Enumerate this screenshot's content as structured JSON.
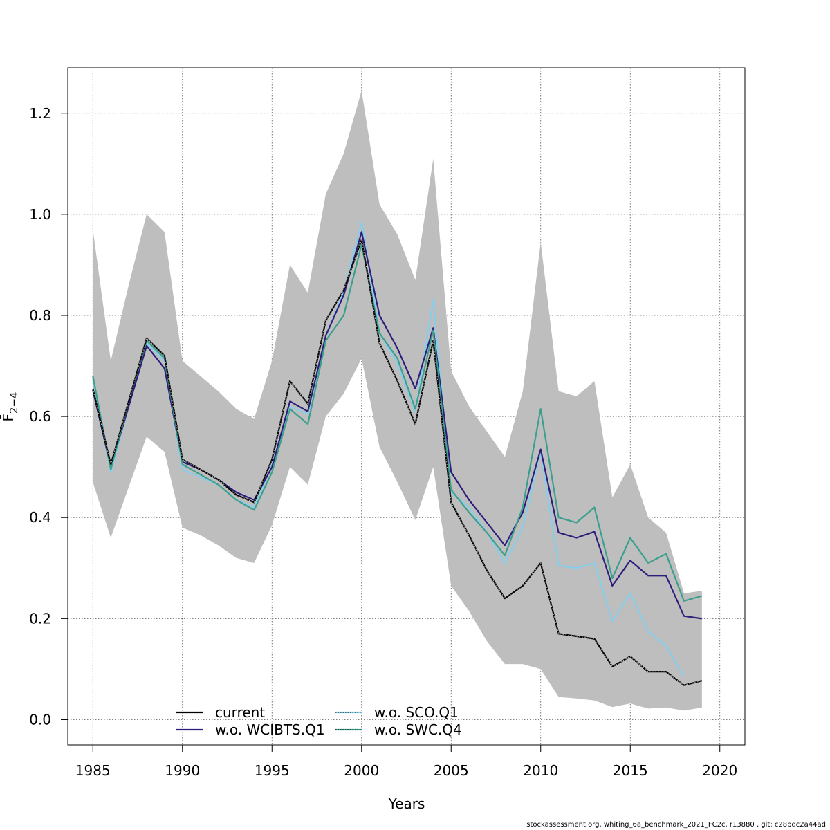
{
  "chart_data": {
    "type": "line",
    "xlabel": "Years",
    "ylabel": "F̄",
    "ylabel_sub": "2−4",
    "xlim": [
      1983.6,
      2021.4
    ],
    "ylim": [
      -0.05,
      1.29
    ],
    "x_ticks": [
      1985,
      1990,
      1995,
      2000,
      2005,
      2010,
      2015,
      2020
    ],
    "y_ticks": [
      0.0,
      0.2,
      0.4,
      0.6,
      0.8,
      1.0,
      1.2
    ],
    "x_tick_labels": [
      "1985",
      "1990",
      "1995",
      "2000",
      "2005",
      "2010",
      "2015",
      "2020"
    ],
    "y_tick_labels": [
      "0.0",
      "0.2",
      "0.4",
      "0.6",
      "0.8",
      "1.0",
      "1.2"
    ],
    "grid": true,
    "legend_position": "bottom-left",
    "x": [
      1985,
      1986,
      1987,
      1988,
      1989,
      1990,
      1991,
      1992,
      1993,
      1994,
      1995,
      1996,
      1997,
      1998,
      1999,
      2000,
      2001,
      2002,
      2003,
      2004,
      2005,
      2006,
      2007,
      2008,
      2009,
      2010,
      2011,
      2012,
      2013,
      2014,
      2015,
      2016,
      2017,
      2018,
      2019
    ],
    "confidence_band": {
      "color": "#bebebe",
      "lower": [
        0.47,
        0.36,
        0.46,
        0.56,
        0.53,
        0.38,
        0.365,
        0.345,
        0.32,
        0.31,
        0.385,
        0.5,
        0.465,
        0.6,
        0.645,
        0.715,
        0.54,
        0.47,
        0.395,
        0.5,
        0.265,
        0.215,
        0.155,
        0.11,
        0.11,
        0.1,
        0.045,
        0.042,
        0.038,
        0.025,
        0.032,
        0.022,
        0.024,
        0.018,
        0.024
      ],
      "upper": [
        0.97,
        0.71,
        0.86,
        1.0,
        0.965,
        0.71,
        0.68,
        0.65,
        0.615,
        0.595,
        0.71,
        0.9,
        0.845,
        1.04,
        1.12,
        1.245,
        1.02,
        0.96,
        0.87,
        1.11,
        0.69,
        0.62,
        0.57,
        0.52,
        0.65,
        0.945,
        0.65,
        0.64,
        0.67,
        0.44,
        0.505,
        0.4,
        0.37,
        0.25,
        0.255
      ]
    },
    "series": [
      {
        "name": "current",
        "color": "#000000",
        "values": [
          0.655,
          0.505,
          0.63,
          0.755,
          0.72,
          0.515,
          0.495,
          0.475,
          0.445,
          0.43,
          0.515,
          0.67,
          0.625,
          0.79,
          0.85,
          0.95,
          0.745,
          0.67,
          0.585,
          0.75,
          0.43,
          0.365,
          0.295,
          0.24,
          0.265,
          0.31,
          0.17,
          0.165,
          0.16,
          0.105,
          0.125,
          0.095,
          0.095,
          0.068,
          0.077
        ]
      },
      {
        "name": "w.o. WCIBTS.Q1",
        "color": "#2e1e7c",
        "values": [
          0.652,
          0.5,
          0.62,
          0.74,
          0.695,
          0.51,
          0.495,
          0.475,
          0.45,
          0.435,
          0.5,
          0.63,
          0.61,
          0.76,
          0.84,
          0.965,
          0.8,
          0.735,
          0.655,
          0.775,
          0.49,
          0.435,
          0.39,
          0.345,
          0.41,
          0.535,
          0.37,
          0.36,
          0.372,
          0.265,
          0.315,
          0.285,
          0.285,
          0.205,
          0.2
        ]
      },
      {
        "name": "w.o. SCO.Q1",
        "color": "#87ceeb",
        "values": [
          0.675,
          0.49,
          0.62,
          0.745,
          0.71,
          0.495,
          0.48,
          0.465,
          0.435,
          0.42,
          0.505,
          0.62,
          0.605,
          0.76,
          0.845,
          0.985,
          0.765,
          0.705,
          0.61,
          0.83,
          0.45,
          0.42,
          0.37,
          0.31,
          0.38,
          0.53,
          0.305,
          0.3,
          0.31,
          0.195,
          0.25,
          0.175,
          0.145,
          0.085,
          null
        ]
      },
      {
        "name": "w.o. SWC.Q4",
        "color": "#3a9f8c",
        "values": [
          0.68,
          0.495,
          0.63,
          0.75,
          0.715,
          0.505,
          0.485,
          0.465,
          0.435,
          0.415,
          0.49,
          0.615,
          0.585,
          0.75,
          0.8,
          0.94,
          0.765,
          0.715,
          0.615,
          0.77,
          0.455,
          0.41,
          0.37,
          0.325,
          0.42,
          0.615,
          0.4,
          0.39,
          0.42,
          0.28,
          0.36,
          0.31,
          0.328,
          0.235,
          0.245
        ]
      }
    ],
    "legend": {
      "entries": [
        "current",
        "w.o. WCIBTS.Q1",
        "w.o. SCO.Q1",
        "w.o. SWC.Q4"
      ]
    }
  },
  "footer": "stockassessment.org, whiting_6a_benchmark_2021_FC2c, r13880 , git: c28bdc2a44ad"
}
